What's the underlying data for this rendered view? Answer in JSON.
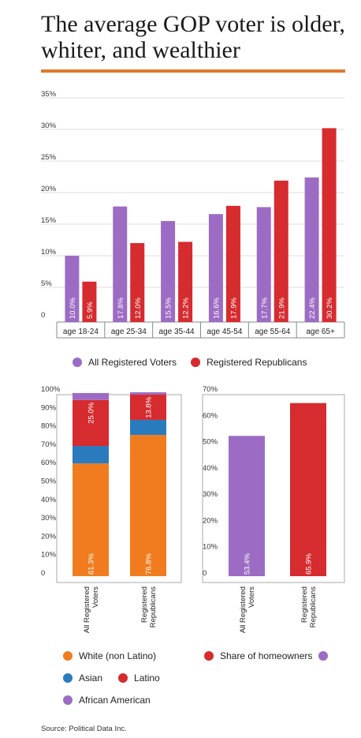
{
  "title": "The average GOP voter is older, whiter, and wealthier",
  "source": "Source: Political Data Inc.",
  "colors": {
    "purple": "#9c6cc4",
    "red": "#d62b2f",
    "orange": "#f07c1f",
    "blue": "#2a7bbd",
    "accent_rule": "#e0792a"
  },
  "legends": {
    "age": [
      {
        "label": "All Registered Voters",
        "color": "#9c6cc4"
      },
      {
        "label": "Registered Republicans",
        "color": "#d62b2f"
      }
    ],
    "race": [
      {
        "label": "White (non Latino)",
        "color": "#f07c1f"
      },
      {
        "label": "Asian",
        "color": "#2a7bbd"
      },
      {
        "label": "Latino",
        "color": "#d62b2f"
      },
      {
        "label": "African American",
        "color": "#9c6cc4"
      }
    ],
    "home": {
      "label": "Share of homeowners"
    }
  },
  "chart_data": [
    {
      "type": "bar",
      "categories": [
        "age 18-24",
        "age 25-34",
        "age 35-44",
        "age 45-54",
        "age 55-64",
        "age 65+"
      ],
      "series": [
        {
          "name": "All Registered Voters",
          "color": "#9c6cc4",
          "values": [
            10.0,
            17.8,
            15.5,
            16.6,
            17.7,
            22.4
          ],
          "labels": [
            "10.0%",
            "17.8%",
            "15.5%",
            "16.6%",
            "17.7%",
            "22.4%"
          ]
        },
        {
          "name": "Registered Republicans",
          "color": "#d62b2f",
          "values": [
            5.9,
            12.0,
            12.2,
            17.9,
            21.9,
            30.2
          ],
          "labels": [
            "5.9%",
            "12.0%",
            "12.2%",
            "17.9%",
            "21.9%",
            "30.2%"
          ]
        }
      ],
      "ylim": [
        0,
        35
      ],
      "yticks": [
        0,
        5,
        10,
        15,
        20,
        25,
        30,
        35
      ],
      "ytick_labels": [
        "0",
        "5%",
        "10%",
        "15%",
        "20%",
        "25%",
        "30%",
        "35%"
      ],
      "grid": true,
      "legend_position": "bottom"
    },
    {
      "type": "bar",
      "stacked": true,
      "categories": [
        "All Registered Voters",
        "Registered Republicans"
      ],
      "series": [
        {
          "name": "White (non Latino)",
          "color": "#f07c1f",
          "values": [
            61.3,
            76.8
          ],
          "labels": [
            "61.3%",
            "76.8%"
          ]
        },
        {
          "name": "Asian",
          "color": "#2a7bbd",
          "values": [
            9.5,
            8.2
          ],
          "labels": [
            "",
            ""
          ]
        },
        {
          "name": "Latino",
          "color": "#d62b2f",
          "values": [
            25.0,
            13.8
          ],
          "labels": [
            "25.0%",
            "13.8%"
          ]
        },
        {
          "name": "African American",
          "color": "#9c6cc4",
          "values": [
            3.8,
            1.2
          ],
          "labels": [
            "",
            ""
          ]
        }
      ],
      "ylim": [
        0,
        100
      ],
      "yticks": [
        0,
        10,
        20,
        30,
        40,
        50,
        60,
        70,
        80,
        90,
        100
      ],
      "ytick_labels": [
        "0",
        "10%",
        "20%",
        "30%",
        "40%",
        "50%",
        "60%",
        "70%",
        "80%",
        "90%",
        "100%"
      ],
      "grid": false,
      "legend_position": "bottom"
    },
    {
      "type": "bar",
      "categories": [
        "All Registered Voters",
        "Registered Republicans"
      ],
      "values": [
        53.4,
        65.9
      ],
      "value_labels": [
        "53.4%",
        "65.9%"
      ],
      "colors": [
        "#9c6cc4",
        "#d62b2f"
      ],
      "ylim": [
        0,
        70
      ],
      "yticks": [
        0,
        10,
        20,
        30,
        40,
        50,
        60,
        70
      ],
      "ytick_labels": [
        "0",
        "10%",
        "20%",
        "30%",
        "40%",
        "50%",
        "60%",
        "70%"
      ],
      "grid": false,
      "legend_position": "bottom"
    }
  ]
}
